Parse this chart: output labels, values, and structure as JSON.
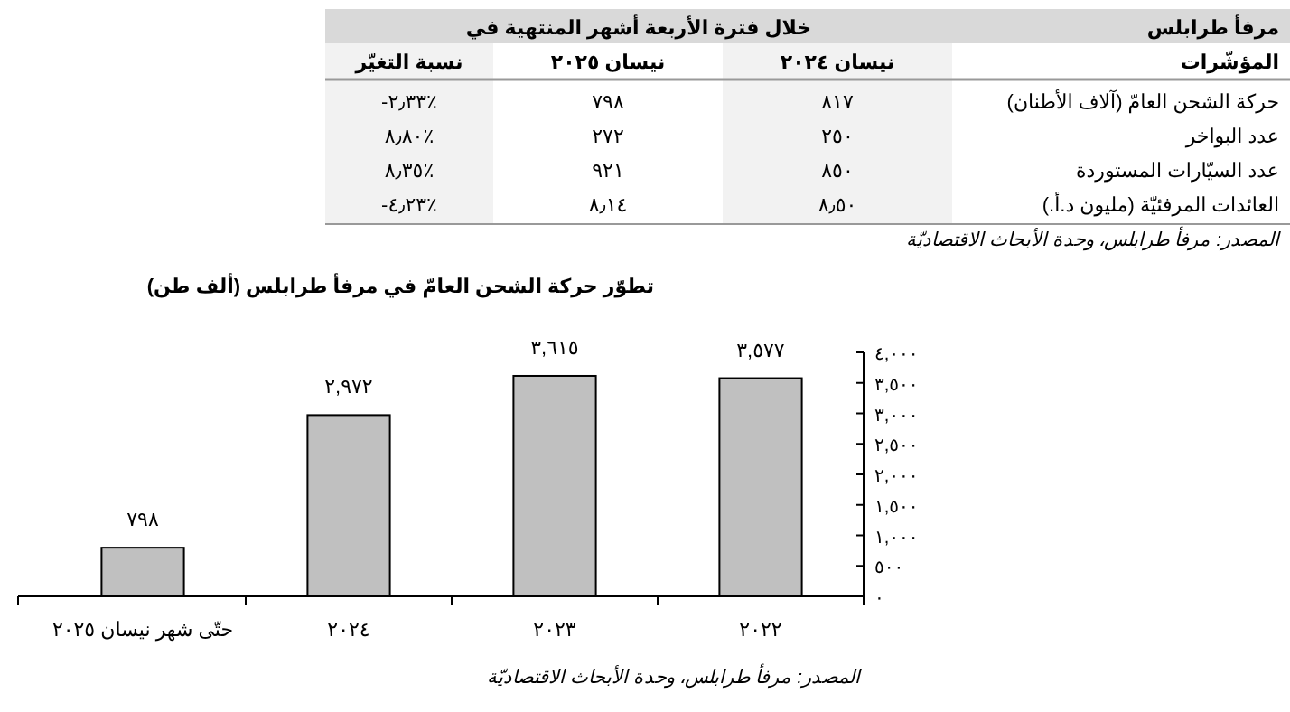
{
  "chart_data": [
    {
      "type": "other",
      "title": "مرفأ طرابلس",
      "subtitle": "خلال فترة الأربعة أشهر المنتهية في",
      "categories": [
        "المؤشّرات",
        "نيسان ٢٠٢٤",
        "نيسان ٢٠٢٥",
        "نسبة التغيّر"
      ],
      "y_categories": [
        "حركة الشحن العامّ (آلاف الأطنان)",
        "عدد البواخر",
        "عدد السيّارات المستوردة",
        "العائدات المرفئيّة (مليون د.أ.)"
      ],
      "cell_labels": [
        [
          "٨١٧",
          "٧٩٨",
          "-٢٫٣٣٪"
        ],
        [
          "٢٥٠",
          "٢٧٢",
          "٨٫٨٠٪"
        ],
        [
          "٨٥٠",
          "٩٢١",
          "٨٫٣٥٪"
        ],
        [
          "٨٫٥٠",
          "٨٫١٤",
          "-٤٫٢٣٪"
        ]
      ],
      "annotations": [
        "المصدر: مرفأ طرابلس، وحدة الأبحاث الاقتصاديّة"
      ]
    },
    {
      "type": "bar",
      "title": "تطوّر حركة الشحن العامّ في مرفأ طرابلس (ألف طن)",
      "categories": [
        "حتّى شهر نيسان ٢٠٢٥",
        "٢٠٢٤",
        "٢٠٢٣",
        "٢٠٢٢"
      ],
      "values": [
        798,
        2972,
        3615,
        3577
      ],
      "value_labels": [
        "٧٩٨",
        "٢,٩٧٢",
        "٣,٦١٥",
        "٣,٥٧٧"
      ],
      "color": "#c0c0c0",
      "ylim": [
        0,
        4000
      ],
      "yticks": [
        {
          "value": 0,
          "label": "٠"
        },
        {
          "value": 500,
          "label": "٥٠٠"
        },
        {
          "value": 1000,
          "label": "١,٠٠٠"
        },
        {
          "value": 1500,
          "label": "١,٥٠٠"
        },
        {
          "value": 2000,
          "label": "٢,٠٠٠"
        },
        {
          "value": 2500,
          "label": "٢,٥٠٠"
        },
        {
          "value": 3000,
          "label": "٣,٠٠٠"
        },
        {
          "value": 3500,
          "label": "٣,٥٠٠"
        },
        {
          "value": 4000,
          "label": "٤,٠٠٠"
        }
      ],
      "annotations": [
        "المصدر: مرفأ طرابلس، وحدة الأبحاث الاقتصاديّة"
      ]
    }
  ]
}
